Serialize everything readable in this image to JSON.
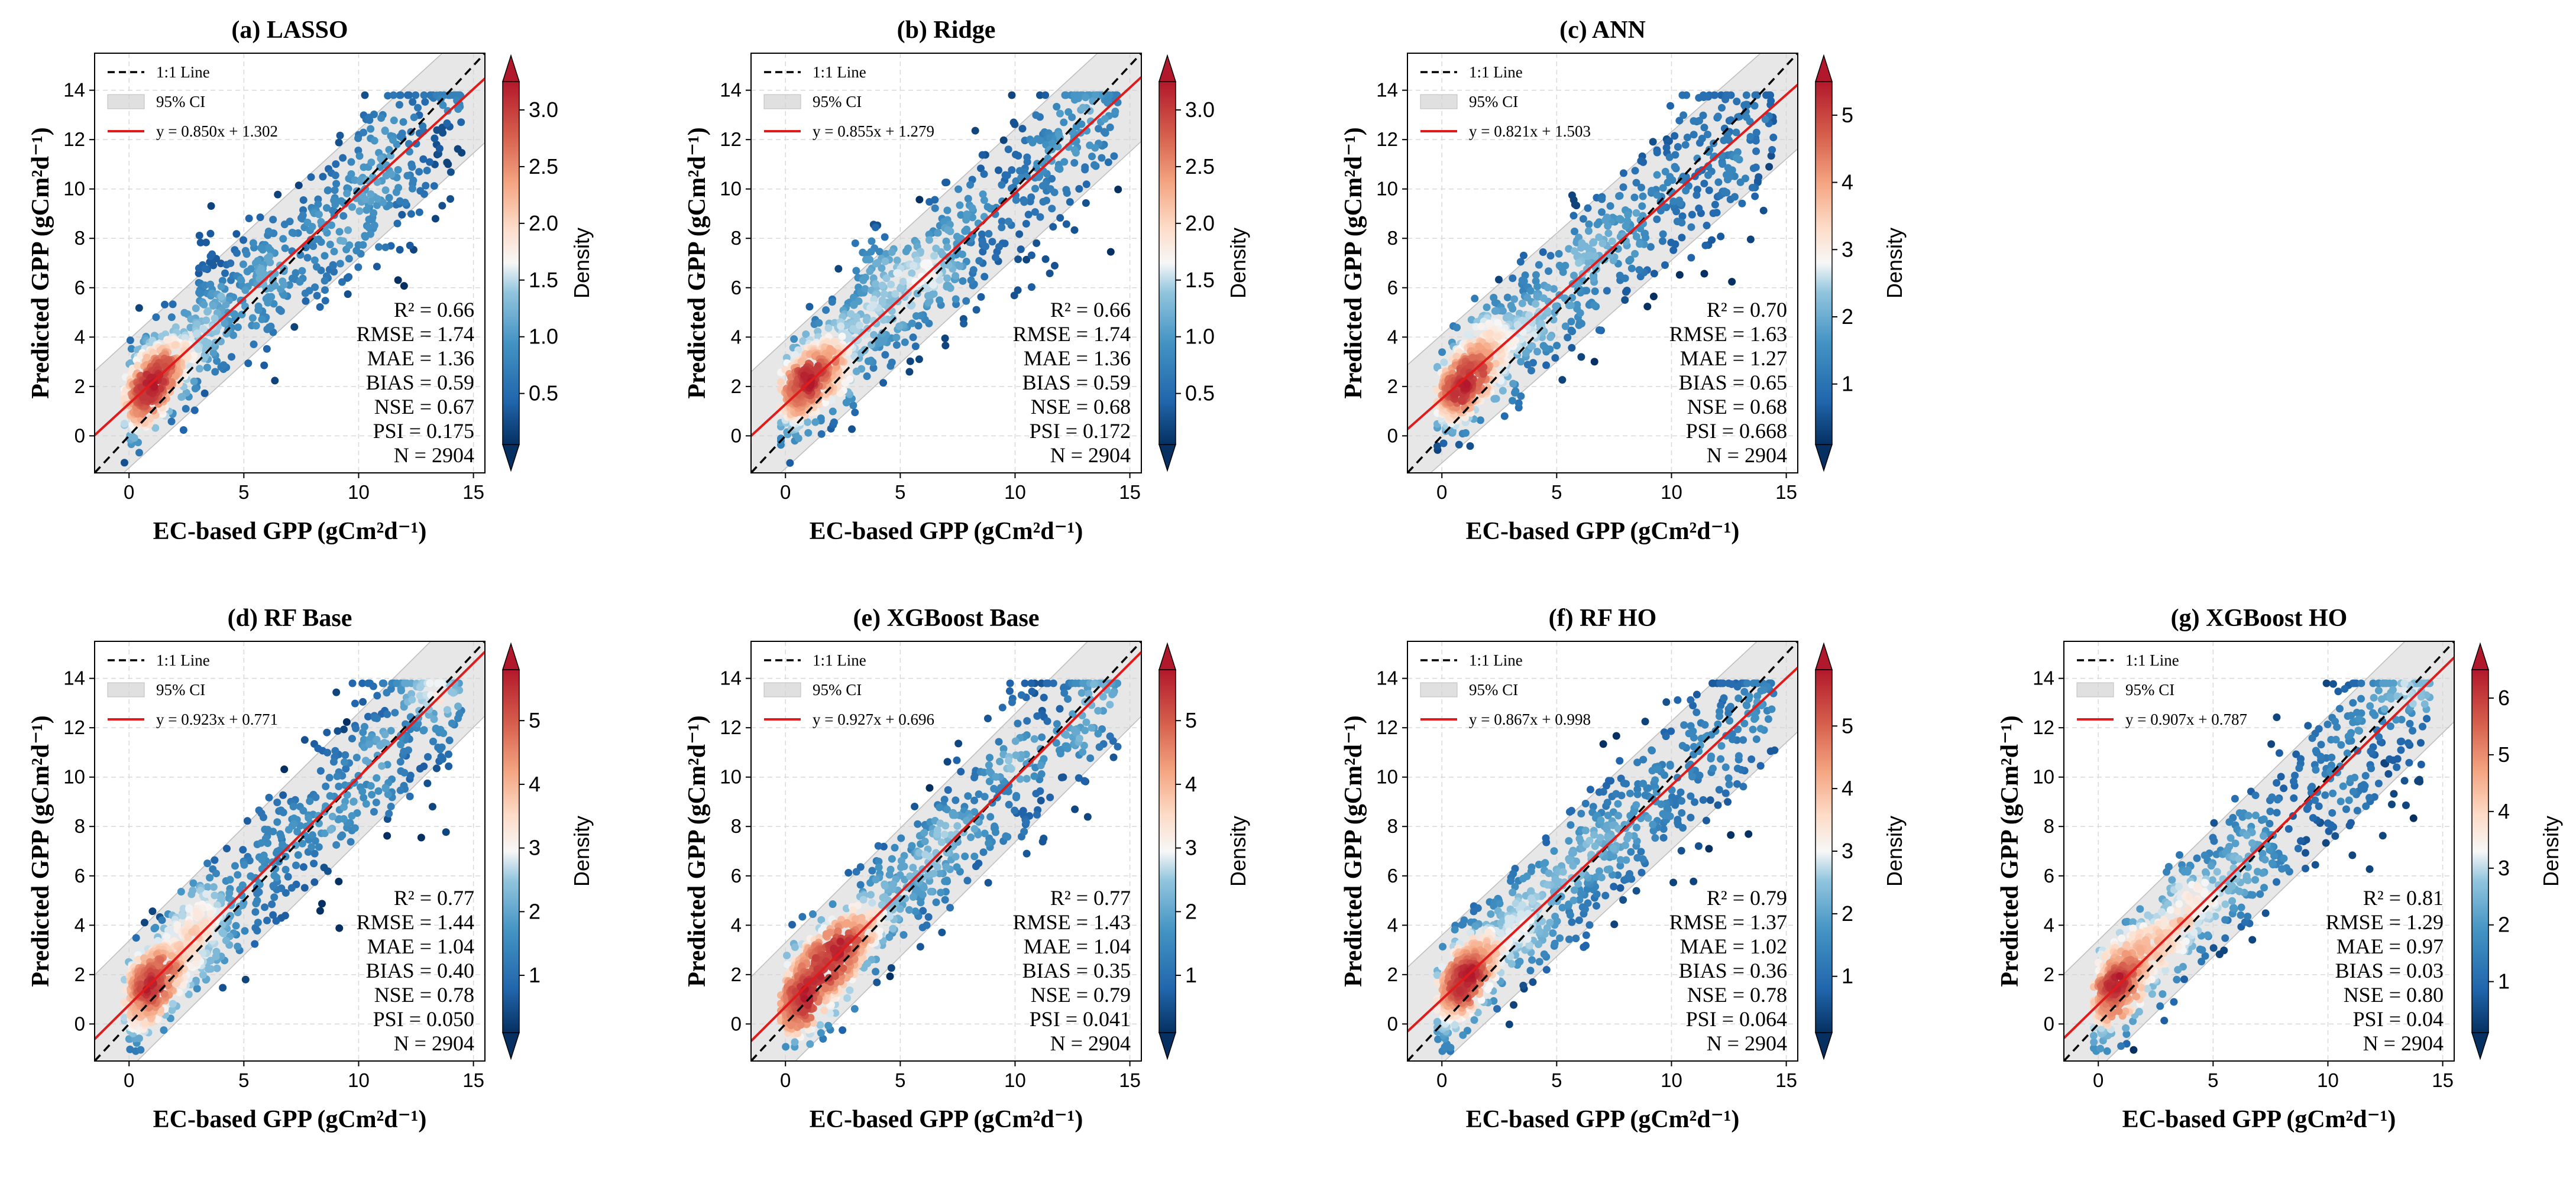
{
  "figure": {
    "xlabel": "EC-based GPP (gCm²d⁻¹)",
    "ylabel": "Predicted GPP (gCm²d⁻¹)",
    "legend": {
      "one_to_one": "1:1 Line",
      "ci": "95% CI"
    },
    "colorbar_label": "Density",
    "colors": {
      "fit": "#e01b1b",
      "one_to_one": "#000000",
      "ci": "#d3d3d3",
      "grid": "#d9d9d9"
    }
  },
  "chart_data": [
    {
      "type": "scatter",
      "title": "(a) LASSO",
      "fit_label": "y = 0.850x + 1.302",
      "slope": 0.85,
      "intercept": 1.302,
      "stats": [
        "R² = 0.66",
        "RMSE = 1.74",
        "MAE = 1.36",
        "BIAS = 0.59",
        "NSE = 0.67",
        "PSI = 0.175",
        "N = 2904"
      ],
      "xlim": [
        -1.5,
        15.5
      ],
      "ylim": [
        -1.5,
        15.5
      ],
      "xticks": [
        0,
        5,
        10,
        15
      ],
      "yticks": [
        0,
        2,
        4,
        6,
        8,
        10,
        12,
        14
      ],
      "colorbar": {
        "ticks": [
          0.5,
          1.0,
          1.5,
          2.0,
          2.5,
          3.0
        ],
        "tick_labels": [
          "0.5",
          "1.0",
          "1.5",
          "2.0",
          "2.5",
          "3.0"
        ],
        "range": [
          0.05,
          3.25
        ]
      },
      "points": {
        "seed": 11,
        "slope": 0.85,
        "intercept": 1.302,
        "cluster_strength": 1.0
      }
    },
    {
      "type": "scatter",
      "title": "(b) Ridge",
      "fit_label": "y = 0.855x + 1.279",
      "slope": 0.855,
      "intercept": 1.279,
      "stats": [
        "R² = 0.66",
        "RMSE = 1.74",
        "MAE = 1.36",
        "BIAS = 0.59",
        "NSE = 0.68",
        "PSI = 0.172",
        "N = 2904"
      ],
      "xlim": [
        -1.5,
        15.5
      ],
      "ylim": [
        -1.5,
        15.5
      ],
      "xticks": [
        0,
        5,
        10,
        15
      ],
      "yticks": [
        0,
        2,
        4,
        6,
        8,
        10,
        12,
        14
      ],
      "colorbar": {
        "ticks": [
          0.5,
          1.0,
          1.5,
          2.0,
          2.5,
          3.0
        ],
        "tick_labels": [
          "0.5",
          "1.0",
          "1.5",
          "2.0",
          "2.5",
          "3.0"
        ],
        "range": [
          0.05,
          3.25
        ]
      },
      "points": {
        "seed": 23,
        "slope": 0.855,
        "intercept": 1.279,
        "cluster_strength": 1.0
      }
    },
    {
      "type": "scatter",
      "title": "(c) ANN",
      "fit_label": "y = 0.821x + 1.503",
      "slope": 0.821,
      "intercept": 1.503,
      "stats": [
        "R² = 0.70",
        "RMSE = 1.63",
        "MAE = 1.27",
        "BIAS = 0.65",
        "NSE = 0.68",
        "PSI = 0.668",
        "N = 2904"
      ],
      "xlim": [
        -1.5,
        15.5
      ],
      "ylim": [
        -1.5,
        15.5
      ],
      "xticks": [
        0,
        5,
        10,
        15
      ],
      "yticks": [
        0,
        2,
        4,
        6,
        8,
        10,
        12,
        14
      ],
      "colorbar": {
        "ticks": [
          1,
          2,
          3,
          4,
          5
        ],
        "tick_labels": [
          "1",
          "2",
          "3",
          "4",
          "5"
        ],
        "range": [
          0.1,
          5.5
        ]
      },
      "points": {
        "seed": 37,
        "slope": 0.821,
        "intercept": 1.503,
        "cluster_strength": 0.4
      }
    },
    {
      "type": "scatter",
      "title": "(d) RF Base",
      "fit_label": "y = 0.923x + 0.771",
      "slope": 0.923,
      "intercept": 0.771,
      "stats": [
        "R² = 0.77",
        "RMSE = 1.44",
        "MAE = 1.04",
        "BIAS = 0.40",
        "NSE = 0.78",
        "PSI = 0.050",
        "N = 2904"
      ],
      "xlim": [
        -1.5,
        15.5
      ],
      "ylim": [
        -1.5,
        15.5
      ],
      "xticks": [
        0,
        5,
        10,
        15
      ],
      "yticks": [
        0,
        2,
        4,
        6,
        8,
        10,
        12,
        14
      ],
      "colorbar": {
        "ticks": [
          1,
          2,
          3,
          4,
          5
        ],
        "tick_labels": [
          "1",
          "2",
          "3",
          "4",
          "5"
        ],
        "range": [
          0.1,
          5.8
        ]
      },
      "points": {
        "seed": 41,
        "slope": 0.923,
        "intercept": 0.771,
        "cluster_strength": 0.2
      }
    },
    {
      "type": "scatter",
      "title": "(e) XGBoost Base",
      "fit_label": "y = 0.927x + 0.696",
      "slope": 0.927,
      "intercept": 0.696,
      "stats": [
        "R² = 0.77",
        "RMSE = 1.43",
        "MAE = 1.04",
        "BIAS = 0.35",
        "NSE = 0.79",
        "PSI = 0.041",
        "N = 2904"
      ],
      "xlim": [
        -1.5,
        15.5
      ],
      "ylim": [
        -1.5,
        15.5
      ],
      "xticks": [
        0,
        5,
        10,
        15
      ],
      "yticks": [
        0,
        2,
        4,
        6,
        8,
        10,
        12,
        14
      ],
      "colorbar": {
        "ticks": [
          1,
          2,
          3,
          4,
          5
        ],
        "tick_labels": [
          "1",
          "2",
          "3",
          "4",
          "5"
        ],
        "range": [
          0.1,
          5.8
        ]
      },
      "points": {
        "seed": 53,
        "slope": 0.927,
        "intercept": 0.696,
        "cluster_strength": 0.2
      }
    },
    {
      "type": "scatter",
      "title": "(f) RF HO",
      "fit_label": "y = 0.867x + 0.998",
      "slope": 0.867,
      "intercept": 0.998,
      "stats": [
        "R² = 0.79",
        "RMSE = 1.37",
        "MAE = 1.02",
        "BIAS = 0.36",
        "NSE = 0.78",
        "PSI = 0.064",
        "N = 2904"
      ],
      "xlim": [
        -1.5,
        15.5
      ],
      "ylim": [
        -1.5,
        15.5
      ],
      "xticks": [
        0,
        5,
        10,
        15
      ],
      "yticks": [
        0,
        2,
        4,
        6,
        8,
        10,
        12,
        14
      ],
      "colorbar": {
        "ticks": [
          1,
          2,
          3,
          4,
          5
        ],
        "tick_labels": [
          "1",
          "2",
          "3",
          "4",
          "5"
        ],
        "range": [
          0.1,
          5.9
        ]
      },
      "points": {
        "seed": 67,
        "slope": 0.867,
        "intercept": 0.998,
        "cluster_strength": 0.3
      }
    },
    {
      "type": "scatter",
      "title": "(g) XGBoost HO",
      "fit_label": "y = 0.907x + 0.787",
      "slope": 0.907,
      "intercept": 0.787,
      "stats": [
        "R² = 0.81",
        "RMSE = 1.29",
        "MAE = 0.97",
        "BIAS = 0.03",
        "NSE = 0.80",
        "PSI = 0.04",
        "N = 2904"
      ],
      "xlim": [
        -1.5,
        15.5
      ],
      "ylim": [
        -1.5,
        15.5
      ],
      "xticks": [
        0,
        5,
        10,
        15
      ],
      "yticks": [
        0,
        2,
        4,
        6,
        8,
        10,
        12,
        14
      ],
      "colorbar": {
        "ticks": [
          1,
          2,
          3,
          4,
          5,
          6
        ],
        "tick_labels": [
          "1",
          "2",
          "3",
          "4",
          "5",
          "6"
        ],
        "range": [
          0.1,
          6.5
        ]
      },
      "points": {
        "seed": 79,
        "slope": 0.907,
        "intercept": 0.787,
        "cluster_strength": 0.15
      }
    }
  ]
}
